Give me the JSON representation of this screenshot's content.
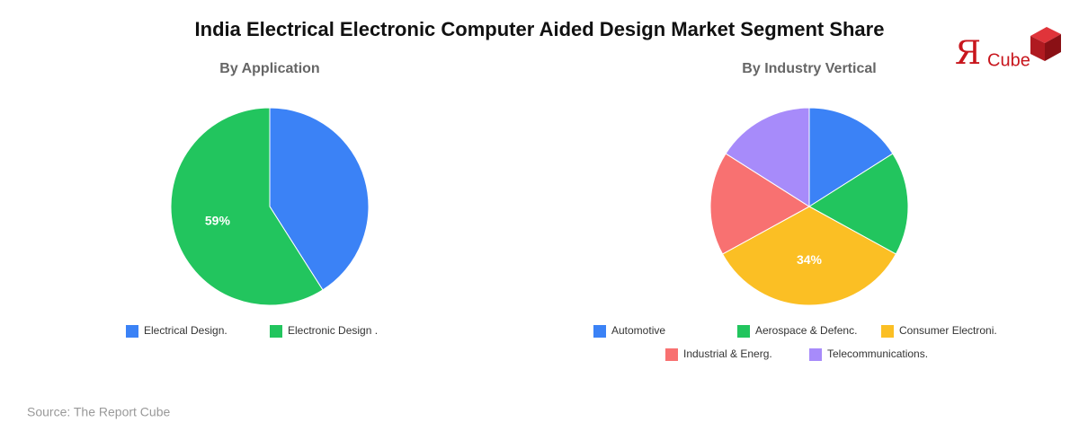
{
  "title": "India Electrical Electronic Computer Aided Design Market Segment Share",
  "logo": {
    "mark": "Я",
    "text": "Cube"
  },
  "source": "Source: The Report Cube",
  "chart_data": [
    {
      "type": "pie",
      "subtitle": "By Application",
      "categories": [
        "Electrical Design.",
        "Electronic Design ."
      ],
      "values": [
        41,
        59
      ],
      "value_labels": [
        null,
        "59%"
      ],
      "colors": [
        "#3b82f6",
        "#22c55e"
      ]
    },
    {
      "type": "pie",
      "subtitle": "By Industry Vertical",
      "categories": [
        "Automotive",
        "Aerospace & Defenc.",
        "Consumer Electroni.",
        "Industrial & Energ.",
        "Telecommunications."
      ],
      "values": [
        16,
        17,
        34,
        17,
        16
      ],
      "value_labels": [
        null,
        null,
        "34%",
        null,
        null
      ],
      "colors": [
        "#3b82f6",
        "#22c55e",
        "#fbbf24",
        "#f87171",
        "#a78bfa"
      ]
    }
  ]
}
